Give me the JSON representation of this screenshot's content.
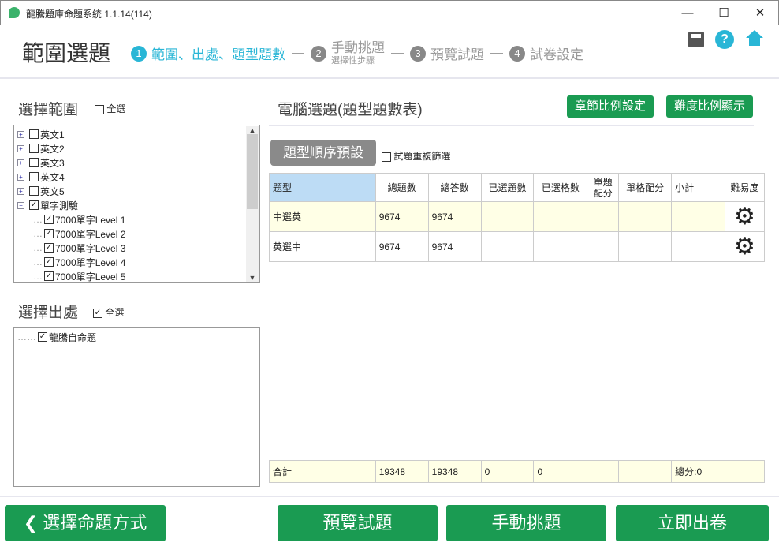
{
  "window": {
    "title": "龍騰題庫命題系統 1.1.14(114)",
    "minimize": "—",
    "maximize": "☐",
    "close": "✕"
  },
  "header": {
    "title": "範圍選題",
    "steps": [
      {
        "num": "1",
        "label": "範圍、出處、題型題數",
        "active": true
      },
      {
        "num": "2",
        "label": "手動挑題",
        "sub": "選擇性步驟"
      },
      {
        "num": "3",
        "label": "預覽試題"
      },
      {
        "num": "4",
        "label": "試卷設定"
      }
    ],
    "icons": [
      "save-icon",
      "help-icon",
      "home-icon"
    ],
    "help": "?"
  },
  "scope": {
    "label": "選擇範圍",
    "select_all": "全選",
    "select_all_checked": false,
    "items": [
      {
        "label": "英文1",
        "checked": false,
        "level": 0
      },
      {
        "label": "英文2",
        "checked": false,
        "level": 0
      },
      {
        "label": "英文3",
        "checked": false,
        "level": 0
      },
      {
        "label": "英文4",
        "checked": false,
        "level": 0
      },
      {
        "label": "英文5",
        "checked": false,
        "level": 0
      },
      {
        "label": "單字測驗",
        "checked": true,
        "level": 0,
        "expanded": true
      },
      {
        "label": "7000單字Level 1",
        "checked": true,
        "level": 1
      },
      {
        "label": "7000單字Level 2",
        "checked": true,
        "level": 1
      },
      {
        "label": "7000單字Level 3",
        "checked": true,
        "level": 1
      },
      {
        "label": "7000單字Level 4",
        "checked": true,
        "level": 1
      },
      {
        "label": "7000單字Level 5",
        "checked": true,
        "level": 1
      }
    ]
  },
  "source": {
    "label": "選擇出處",
    "select_all": "全選",
    "select_all_checked": true,
    "items": [
      {
        "label": "龍騰自命題",
        "checked": true
      }
    ]
  },
  "main": {
    "title": "電腦選題(題型題數表)",
    "chapter_btn": "章節比例設定",
    "difficulty_btn": "難度比例顯示",
    "preset_btn": "題型順序預設",
    "dedupe": "試題重複篩選",
    "dedupe_checked": false,
    "columns": [
      "題型",
      "總題數",
      "總答數",
      "已選題數",
      "已選格數",
      "單題\n配分",
      "單格配分",
      "小計",
      "難易度"
    ],
    "rows": [
      [
        "中選英",
        "9674",
        "9674",
        "",
        "",
        "",
        "",
        ""
      ],
      [
        "英選中",
        "9674",
        "9674",
        "",
        "",
        "",
        "",
        ""
      ]
    ],
    "footer": [
      "合計",
      "19348",
      "19348",
      "0",
      "0",
      "",
      "",
      "總分:0"
    ]
  },
  "bottom": {
    "back": "選擇命題方式",
    "preview": "預覽試題",
    "manual": "手動挑題",
    "generate": "立即出卷"
  },
  "colors": {
    "accent": "#29b6d6",
    "green": "#1a9b52",
    "header_cell": "#bddcf5",
    "row_hl": "#ffffe6"
  }
}
